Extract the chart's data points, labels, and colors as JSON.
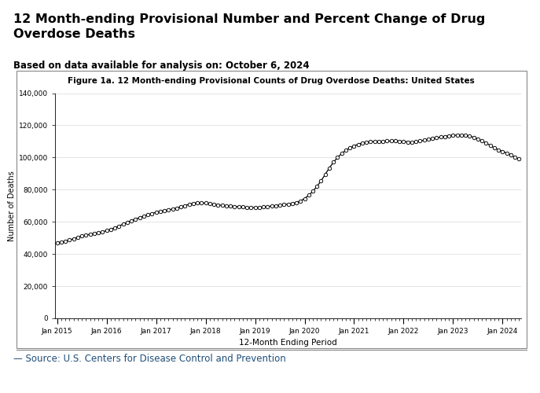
{
  "title": "12 Month-ending Provisional Number and Percent Change of Drug\nOverdose Deaths",
  "subtitle": "Based on data available for analysis on: October 6, 2024",
  "fig_title": "Figure 1a. 12 Month-ending Provisional Counts of Drug Overdose Deaths: United States",
  "xlabel": "12-Month Ending Period",
  "ylabel": "Number of Deaths",
  "source": "— Source: U.S. Centers for Disease Control and Prevention",
  "source_color": "#1f4e79",
  "fig_title_bg": "#bdd7ee",
  "outer_bg": "#ffffff",
  "plot_bg": "#ffffff",
  "border_color": "#888888",
  "ylim": [
    0,
    140000
  ],
  "yticks": [
    0,
    20000,
    40000,
    60000,
    80000,
    100000,
    120000,
    140000
  ],
  "x_labels": [
    "Jan 2015",
    "Jan 2016",
    "Jan 2017",
    "Jan 2018",
    "Jan 2019",
    "Jan 2020",
    "Jan 2021",
    "Jan 2022",
    "Jan 2023",
    "Jan 2024"
  ],
  "values": [
    47055,
    47400,
    47900,
    48700,
    49500,
    50400,
    51200,
    51800,
    52200,
    52700,
    53200,
    53800,
    54500,
    55300,
    56300,
    57400,
    58500,
    59600,
    60700,
    61700,
    62600,
    63500,
    64400,
    65200,
    65900,
    66500,
    67000,
    67500,
    68000,
    68600,
    69300,
    70100,
    70900,
    71500,
    71800,
    71800,
    71600,
    71200,
    70800,
    70500,
    70200,
    70000,
    69800,
    69600,
    69400,
    69200,
    69000,
    68900,
    68900,
    69000,
    69200,
    69500,
    69800,
    70100,
    70400,
    70700,
    71000,
    71400,
    72000,
    73000,
    74500,
    76500,
    79000,
    82000,
    85500,
    89500,
    93500,
    97000,
    100000,
    102500,
    104500,
    106000,
    107200,
    108200,
    109000,
    109500,
    109800,
    109900,
    110000,
    110100,
    110200,
    110200,
    110200,
    110100,
    109900,
    109700,
    109600,
    109800,
    110200,
    110700,
    111200,
    111700,
    112200,
    112700,
    113100,
    113500,
    113800,
    113900,
    114000,
    113800,
    113300,
    112500,
    111500,
    110300,
    109000,
    107500,
    106000,
    104800,
    103700,
    102800,
    101500,
    100200,
    99000
  ]
}
